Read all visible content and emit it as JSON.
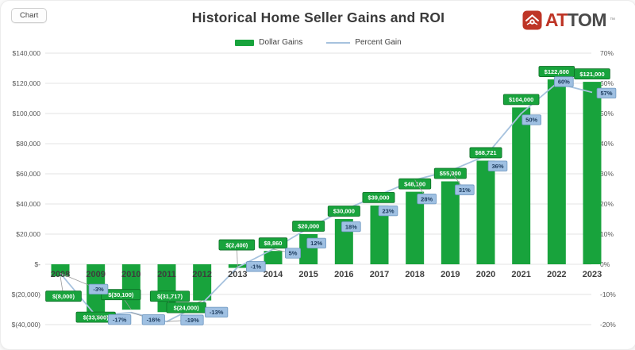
{
  "badge": {
    "label": "Chart"
  },
  "header": {
    "title": "Historical Home Seller Gains and ROI"
  },
  "logo": {
    "prefix": "AT",
    "suffix": "TOM",
    "tm": "™",
    "icon_color": "#BE3526",
    "prefix_color": "#BE3526",
    "suffix_color": "#4A4A4A"
  },
  "legend": {
    "dollar_label": "Dollar Gains",
    "percent_label": "Percent Gain"
  },
  "chart_data": {
    "type": "bar",
    "subtype": "combo bar + line, dual axis",
    "title": "Historical Home Seller Gains and ROI",
    "categories": [
      "2008",
      "2009",
      "2010",
      "2011",
      "2012",
      "2013",
      "2014",
      "2015",
      "2016",
      "2017",
      "2018",
      "2019",
      "2020",
      "2021",
      "2022",
      "2023"
    ],
    "series": [
      {
        "name": "Dollar Gains",
        "type": "bar",
        "axis": "left",
        "color": "#18A33C",
        "label_box_color": "#18A33C",
        "label_box_border": "#0E6F26",
        "label_text_color": "#FFFFFF",
        "values": [
          -8000,
          -33500,
          -30100,
          -31717,
          -24000,
          -2400,
          8860,
          20000,
          30000,
          39000,
          48100,
          55000,
          68721,
          104000,
          122600,
          121000
        ],
        "labels": [
          "$(8,000)",
          "$(33,500)",
          "$(30,100)",
          "$(31,717)",
          "$(24,000)",
          "$(2,400)",
          "$8,860",
          "$20,000",
          "$30,000",
          "$39,000",
          "$48,100",
          "$55,000",
          "$68,721",
          "$104,000",
          "$122,600",
          "$121,000"
        ]
      },
      {
        "name": "Percent Gain",
        "type": "line",
        "axis": "right",
        "color": "#A6C2DE",
        "label_box_color": "#9FC0E2",
        "label_box_border": "#6E97C0",
        "label_text_color": "#1B3A5C",
        "values": [
          -3,
          -17,
          -16,
          -19,
          -13,
          -1,
          5,
          12,
          18,
          23,
          28,
          31,
          36,
          50,
          60,
          57
        ],
        "labels": [
          "-3%",
          "-17%",
          "-16%",
          "-19%",
          "-13%",
          "-1%",
          "5%",
          "12%",
          "18%",
          "23%",
          "28%",
          "31%",
          "36%",
          "50%",
          "60%",
          "57%"
        ]
      }
    ],
    "left_axis": {
      "min": -40000,
      "max": 140000,
      "tick_step": 20000,
      "ticks": [
        "$140,000",
        "$120,000",
        "$100,000",
        "$80,000",
        "$60,000",
        "$40,000",
        "$20,000",
        "$-",
        "$(20,000)",
        "$(40,000)"
      ]
    },
    "right_axis": {
      "min": -20,
      "max": 70,
      "tick_step": 10,
      "ticks": [
        "70%",
        "60%",
        "50%",
        "40%",
        "30%",
        "20%",
        "10%",
        "0%",
        "-10%",
        "-20%"
      ]
    },
    "grid": true,
    "gridline_color": "#E3E3E3",
    "legend_position": "top"
  }
}
